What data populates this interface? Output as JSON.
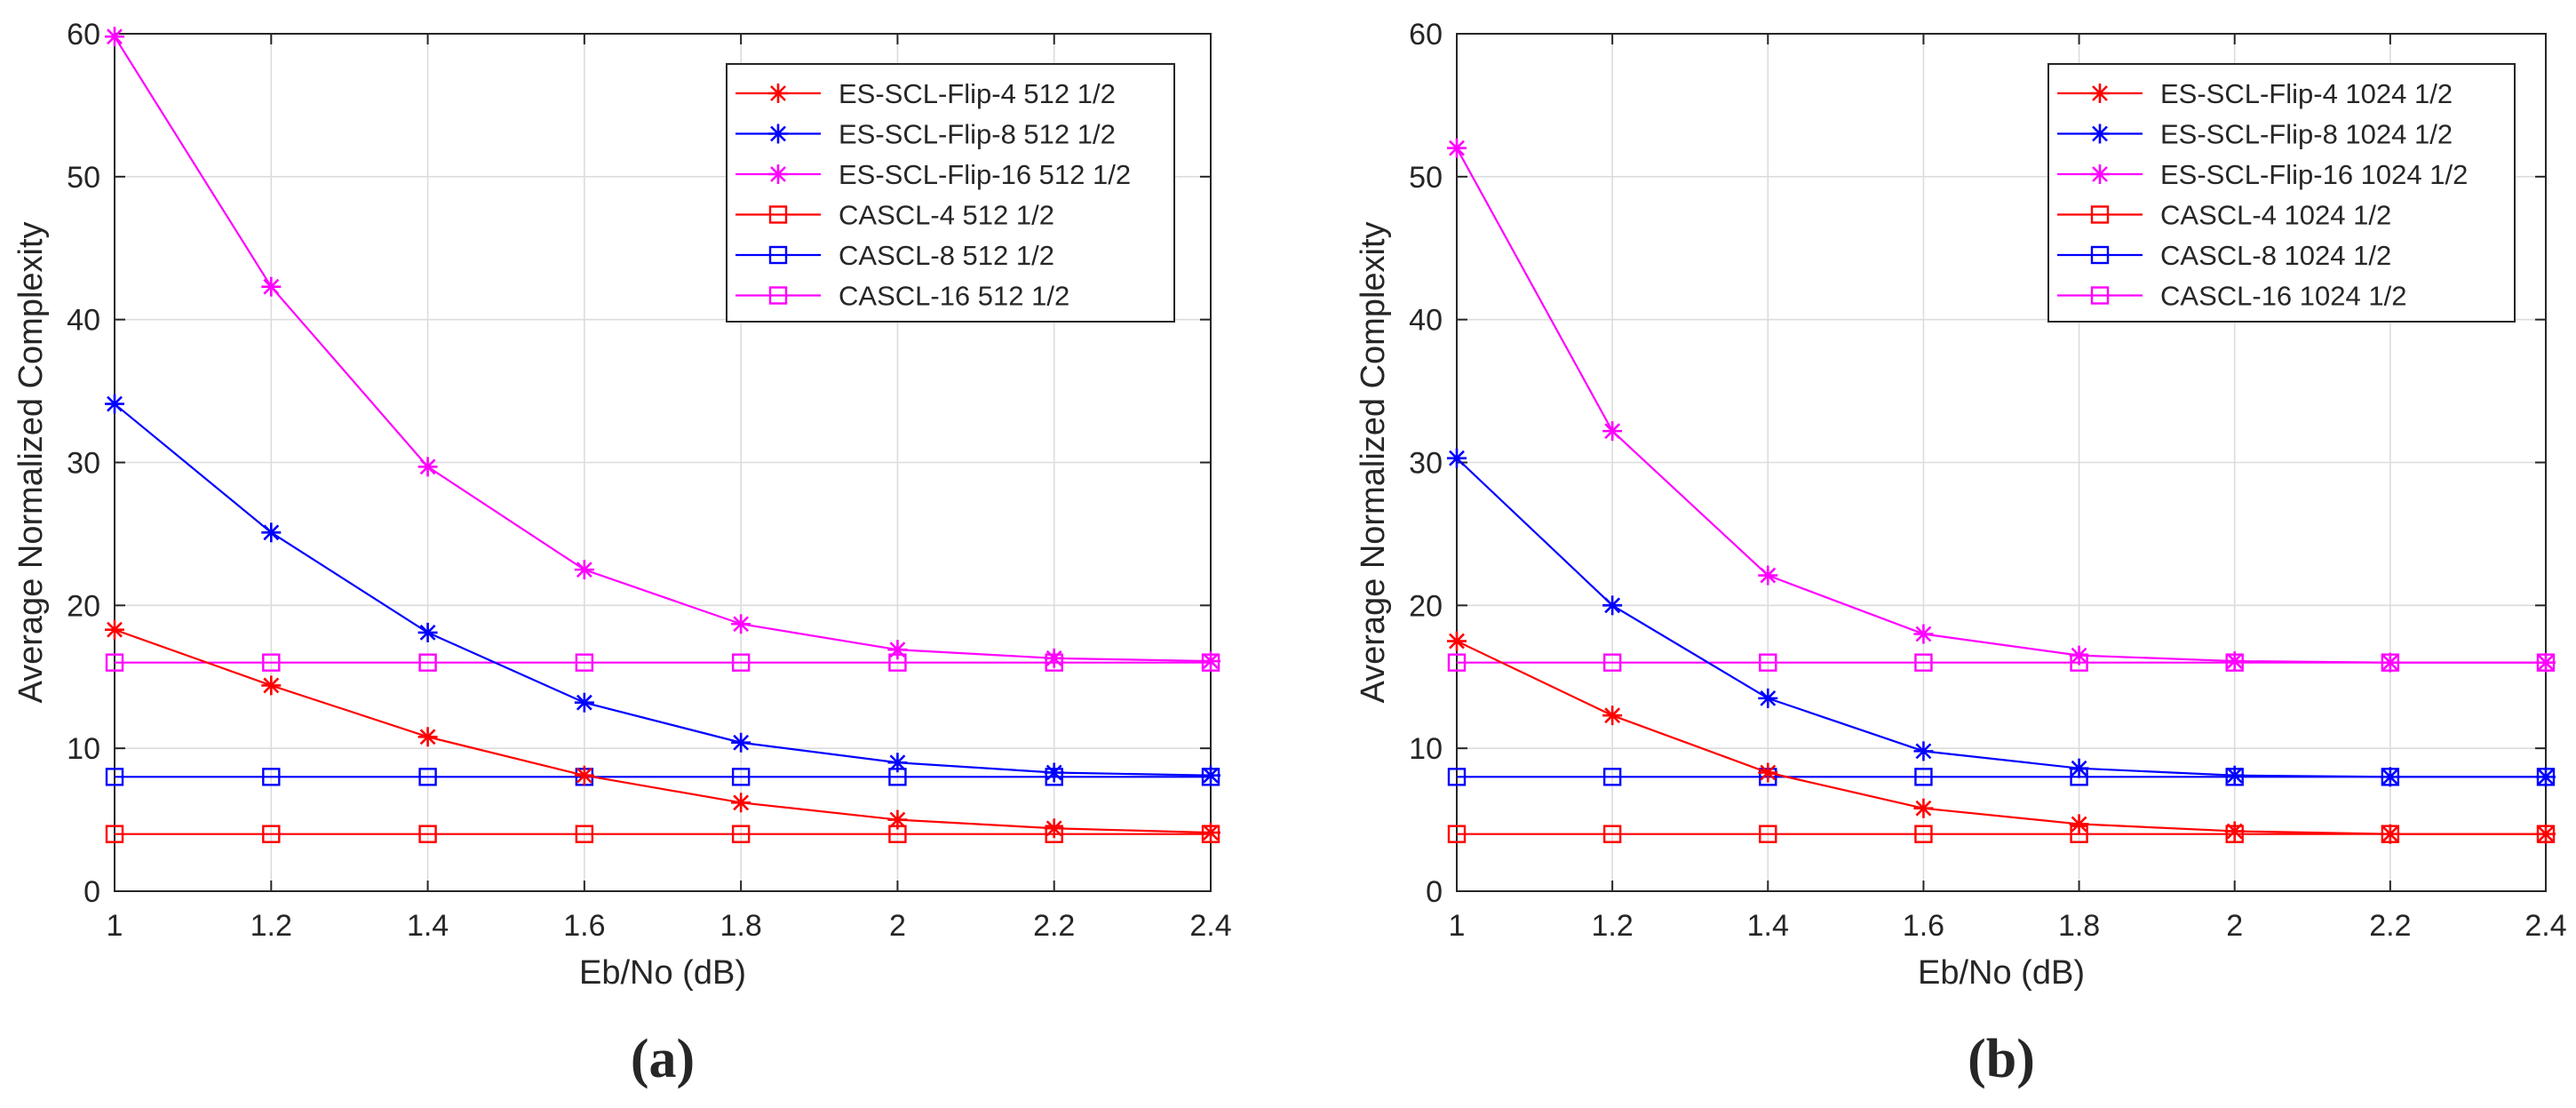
{
  "colors": {
    "red": "#ff0000",
    "blue": "#0000ff",
    "magenta": "#ff00ff",
    "grid": "#dcdcdc",
    "axis": "#262626"
  },
  "chart_data": [
    {
      "type": "line",
      "panel_label": "(a)",
      "xlabel": "Eb/No (dB)",
      "ylabel": "Average Normalized Complexity",
      "xlim": [
        1,
        2.4
      ],
      "ylim": [
        0,
        60
      ],
      "xticks": [
        1,
        1.2,
        1.4,
        1.6,
        1.8,
        2,
        2.2,
        2.4
      ],
      "xtick_labels": [
        "1",
        "1.2",
        "1.4",
        "1.6",
        "1.8",
        "2",
        "2.2",
        "2.4"
      ],
      "yticks": [
        0,
        10,
        20,
        30,
        40,
        50,
        60
      ],
      "ytick_labels": [
        "0",
        "10",
        "20",
        "30",
        "40",
        "50",
        "60"
      ],
      "grid": true,
      "legend_position": "top-right",
      "x": [
        1,
        1.2,
        1.4,
        1.6,
        1.8,
        2,
        2.2,
        2.4
      ],
      "series": [
        {
          "name": "ES-SCL-Flip-4 512 1/2",
          "color": "red",
          "marker": "asterisk",
          "values": [
            18.3,
            14.4,
            10.8,
            8.1,
            6.2,
            5.0,
            4.4,
            4.1
          ]
        },
        {
          "name": "ES-SCL-Flip-8 512 1/2",
          "color": "blue",
          "marker": "asterisk",
          "values": [
            34.1,
            25.1,
            18.1,
            13.2,
            10.4,
            9.0,
            8.3,
            8.1
          ]
        },
        {
          "name": "ES-SCL-Flip-16 512 1/2",
          "color": "magenta",
          "marker": "asterisk",
          "values": [
            59.8,
            42.3,
            29.7,
            22.5,
            18.7,
            16.9,
            16.3,
            16.1
          ]
        },
        {
          "name": "CASCL-4 512 1/2",
          "color": "red",
          "marker": "square",
          "values": [
            4,
            4,
            4,
            4,
            4,
            4,
            4,
            4
          ]
        },
        {
          "name": "CASCL-8 512 1/2",
          "color": "blue",
          "marker": "square",
          "values": [
            8,
            8,
            8,
            8,
            8,
            8,
            8,
            8
          ]
        },
        {
          "name": "CASCL-16 512 1/2",
          "color": "magenta",
          "marker": "square",
          "values": [
            16,
            16,
            16,
            16,
            16,
            16,
            16,
            16
          ]
        }
      ]
    },
    {
      "type": "line",
      "panel_label": "(b)",
      "xlabel": "Eb/No (dB)",
      "ylabel": "Average Normalized Complexity",
      "xlim": [
        1,
        2.4
      ],
      "ylim": [
        0,
        60
      ],
      "xticks": [
        1,
        1.2,
        1.4,
        1.6,
        1.8,
        2,
        2.2,
        2.4
      ],
      "xtick_labels": [
        "1",
        "1.2",
        "1.4",
        "1.6",
        "1.8",
        "2",
        "2.2",
        "2.4"
      ],
      "yticks": [
        0,
        10,
        20,
        30,
        40,
        50,
        60
      ],
      "ytick_labels": [
        "0",
        "10",
        "20",
        "30",
        "40",
        "50",
        "60"
      ],
      "grid": true,
      "legend_position": "top-right",
      "x": [
        1,
        1.2,
        1.4,
        1.6,
        1.8,
        2,
        2.2,
        2.4
      ],
      "series": [
        {
          "name": "ES-SCL-Flip-4 1024 1/2",
          "color": "red",
          "marker": "asterisk",
          "values": [
            17.5,
            12.3,
            8.3,
            5.8,
            4.7,
            4.2,
            4.0,
            4.0
          ]
        },
        {
          "name": "ES-SCL-Flip-8 1024 1/2",
          "color": "blue",
          "marker": "asterisk",
          "values": [
            30.3,
            20.0,
            13.5,
            9.8,
            8.6,
            8.1,
            8.0,
            8.0
          ]
        },
        {
          "name": "ES-SCL-Flip-16 1024 1/2",
          "color": "magenta",
          "marker": "asterisk",
          "values": [
            52.0,
            32.2,
            22.1,
            18.0,
            16.5,
            16.1,
            16.0,
            16.0
          ]
        },
        {
          "name": "CASCL-4 1024 1/2",
          "color": "red",
          "marker": "square",
          "values": [
            4,
            4,
            4,
            4,
            4,
            4,
            4,
            4
          ]
        },
        {
          "name": "CASCL-8 1024 1/2",
          "color": "blue",
          "marker": "square",
          "values": [
            8,
            8,
            8,
            8,
            8,
            8,
            8,
            8
          ]
        },
        {
          "name": "CASCL-16 1024 1/2",
          "color": "magenta",
          "marker": "square",
          "values": [
            16,
            16,
            16,
            16,
            16,
            16,
            16,
            16
          ]
        }
      ]
    }
  ]
}
